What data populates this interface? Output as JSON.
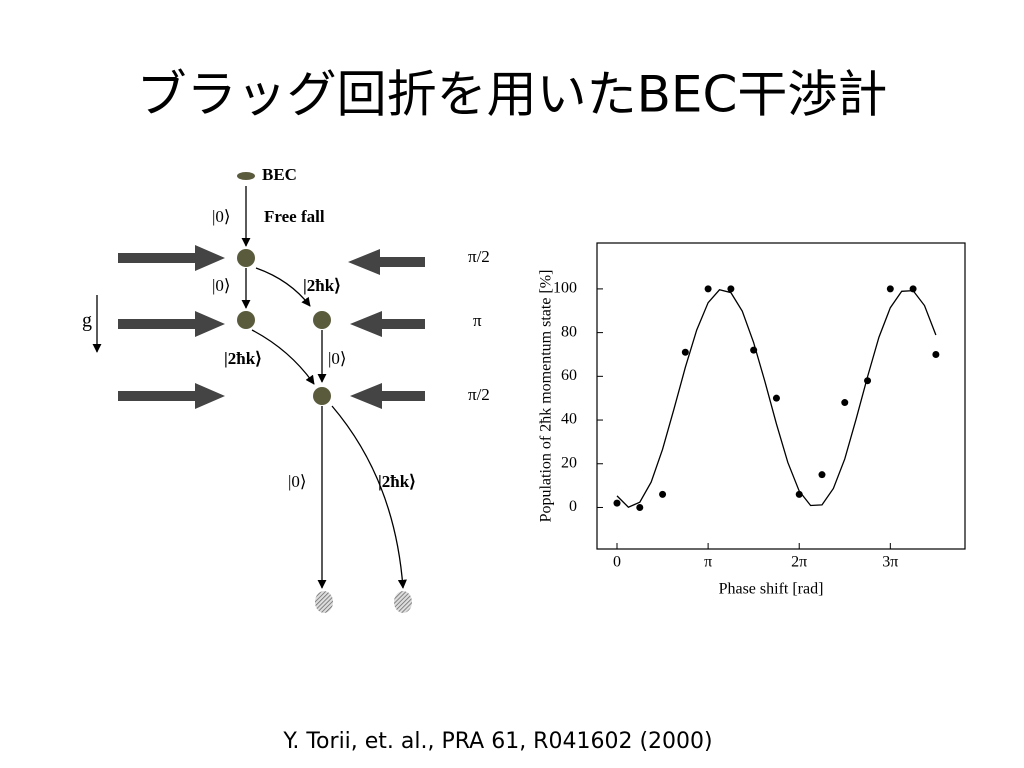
{
  "title": "ブラッグ回折を用いたBEC干渉計",
  "diagram": {
    "labels": [
      "BEC",
      "|0⟩",
      "Free fall",
      "π/2",
      "|0⟩",
      "|2ħk⟩",
      "g",
      "π",
      "|2ħk⟩",
      "|0⟩",
      "π/2",
      "|0⟩",
      "|2ħk⟩"
    ]
  },
  "chart_data": {
    "type": "scatter",
    "y_label": "Population of 2ħk momentum state [%]",
    "x_label": "Phase shift [rad]",
    "xlim": [
      -0.69,
      12.0
    ],
    "ylim": [
      -19,
      121
    ],
    "xticks": [
      0,
      {
        "value": 3.1416,
        "label": "π"
      },
      {
        "value": 6.2832,
        "label": "2π"
      },
      {
        "value": 9.4248,
        "label": "3π"
      }
    ],
    "yticks": [
      0,
      20,
      40,
      60,
      80,
      100
    ],
    "series": [
      {
        "type": "scatter",
        "color": "#000000",
        "x": [
          0,
          0.7854,
          1.5708,
          2.3562,
          3.1416,
          3.927,
          4.7124,
          5.4978,
          6.2832,
          7.0686,
          7.854,
          8.6394,
          9.4248,
          10.2102,
          10.9956
        ],
        "values": [
          2,
          0,
          6,
          71,
          100,
          100,
          72,
          50,
          6,
          15,
          48,
          58,
          100,
          100,
          70
        ]
      },
      {
        "type": "line",
        "color": "#000000",
        "x": [
          0,
          0.3927,
          0.7854,
          1.1781,
          1.5708,
          1.9635,
          2.3562,
          2.7489,
          3.1416,
          3.5343,
          3.927,
          4.3197,
          4.7124,
          5.1051,
          5.4978,
          5.8905,
          6.2832,
          6.6759,
          7.0686,
          7.4613,
          7.854,
          8.2467,
          8.6394,
          9.0321,
          9.4248,
          9.8175,
          10.2102,
          10.6029,
          10.9956
        ],
        "values": [
          5.3,
          0.1,
          2.4,
          11.6,
          26.6,
          45,
          64.1,
          81.2,
          93.7,
          99.6,
          98.3,
          89.8,
          75.4,
          57.4,
          38.2,
          20.6,
          7.5,
          0.9,
          1.2,
          8.7,
          22.2,
          40.5,
          59.8,
          77.9,
          91.4,
          98.9,
          99.2,
          92.4,
          78.9
        ]
      }
    ]
  },
  "citation": "Y. Torii, et. al., PRA 61, R041602 (2000)"
}
